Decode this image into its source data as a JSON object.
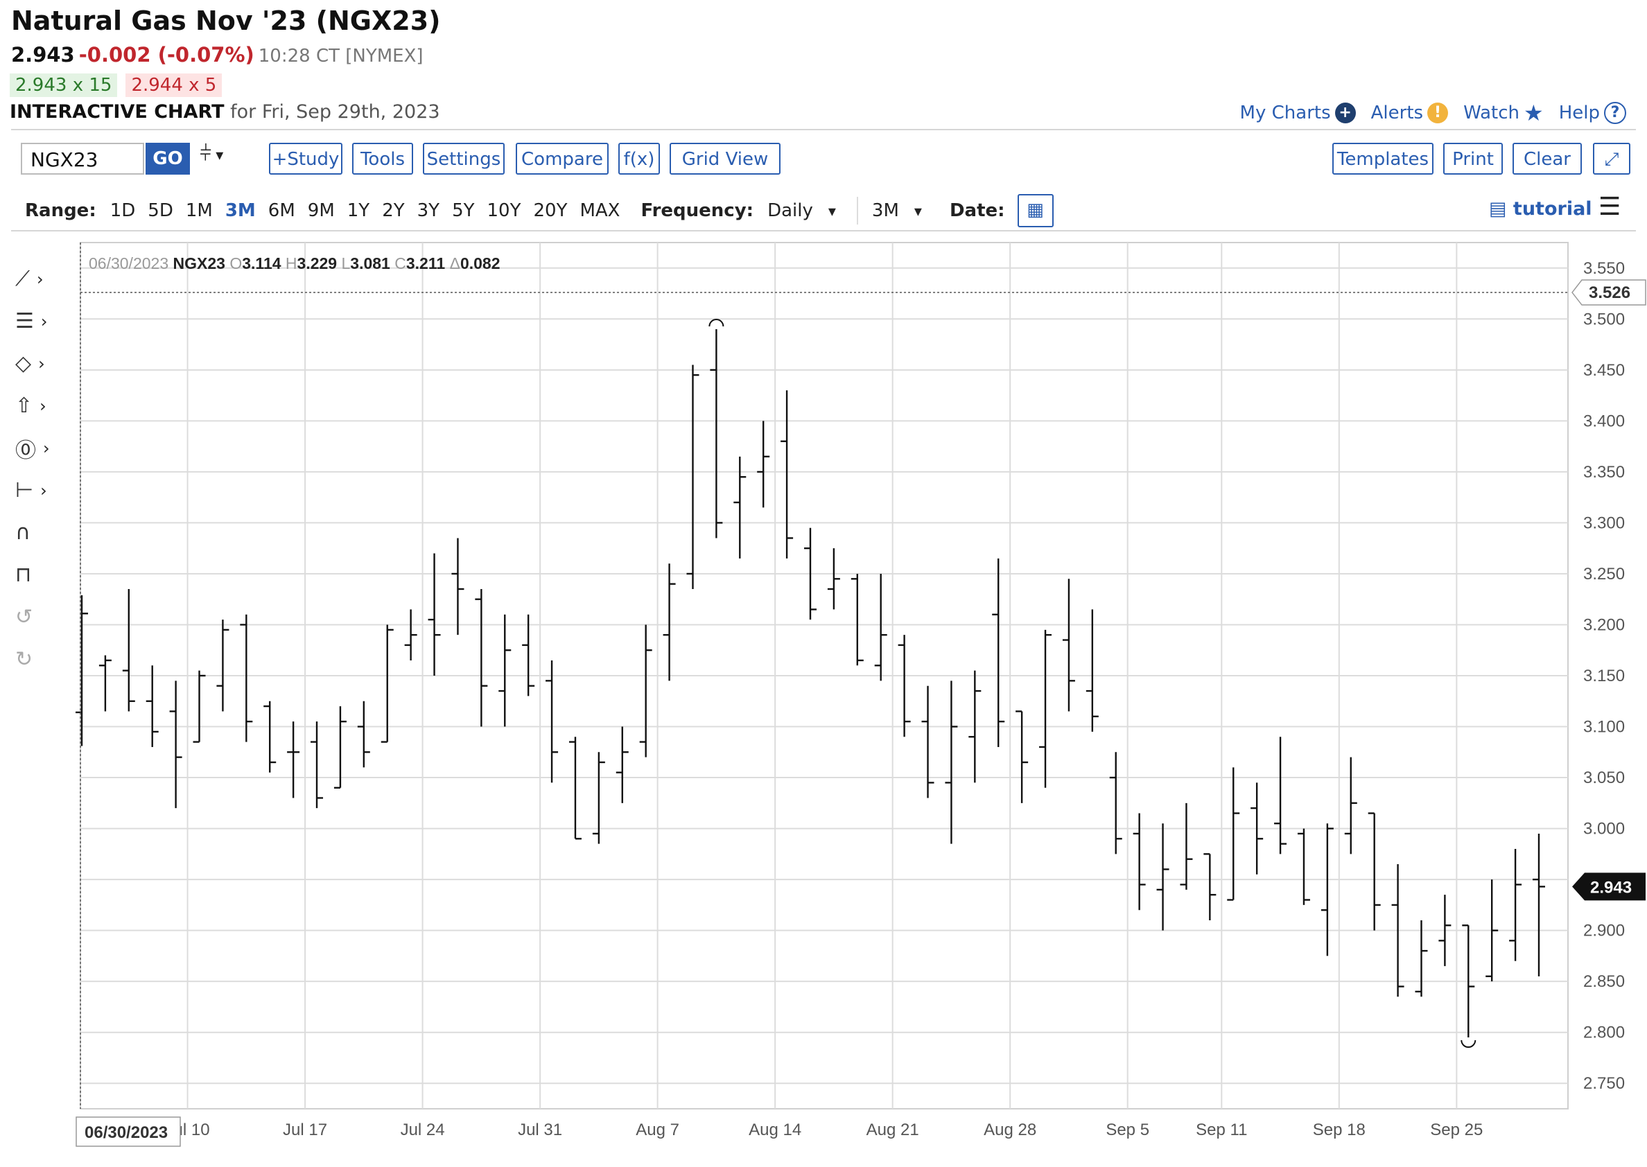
{
  "header": {
    "title": "Natural Gas Nov '23 (NGX23)",
    "last": "2.943",
    "change": "-0.002 (-0.07%)",
    "time": "10:28 CT [NYMEX]",
    "bid": "2.943 x 15",
    "ask": "2.944 x 5",
    "chart_label": "INTERACTIVE CHART",
    "chart_for": "for Fri, Sep 29th, 2023"
  },
  "links": {
    "my_charts": "My Charts",
    "alerts": "Alerts",
    "watch": "Watch",
    "help": "Help"
  },
  "toolbar": {
    "symbol": "NGX23",
    "go": "GO",
    "study": "+Study",
    "tools": "Tools",
    "settings": "Settings",
    "compare": "Compare",
    "fx": "f(x)",
    "grid_view": "Grid View",
    "templates": "Templates",
    "print": "Print",
    "clear": "Clear"
  },
  "range": {
    "label": "Range:",
    "options": [
      "1D",
      "5D",
      "1M",
      "3M",
      "6M",
      "9M",
      "1Y",
      "2Y",
      "3Y",
      "5Y",
      "10Y",
      "20Y",
      "MAX"
    ],
    "selected": "3M",
    "frequency_label": "Frequency:",
    "frequency_value": "Daily",
    "period_value": "3M",
    "date_label": "Date:",
    "tutorial": "tutorial"
  },
  "tools_panel": [
    "line-tool-icon",
    "fib-tool-icon",
    "shape-tool-icon",
    "arrow-tool-icon",
    "text-tool-icon",
    "measure-tool-icon",
    "magnet-icon",
    "lock-icon",
    "undo-icon",
    "redo-icon"
  ],
  "colors": {
    "accent": "#2a5db0",
    "down": "#c0262d",
    "up": "#2a7a2a",
    "bar": "#111111",
    "grid": "#d9d9d9"
  },
  "chart_data": {
    "type": "ohlc",
    "ohlc_header": {
      "date": "06/30/2023",
      "symbol": "NGX23",
      "o": "3.114",
      "h": "3.229",
      "l": "3.081",
      "c": "3.211",
      "delta": "0.082"
    },
    "crosshair_price": "3.526",
    "crosshair_date": "06/30/2023",
    "last_price": "2.943",
    "ylim": [
      2.725,
      3.575
    ],
    "y_ticks": [
      "3.550",
      "3.500",
      "3.450",
      "3.400",
      "3.350",
      "3.300",
      "3.250",
      "3.200",
      "3.150",
      "3.100",
      "3.050",
      "3.000",
      "2.950",
      "2.900",
      "2.850",
      "2.800",
      "2.750"
    ],
    "x_ticks": [
      "Jul 10",
      "Jul 17",
      "Jul 24",
      "Jul 31",
      "Aug 7",
      "Aug 14",
      "Aug 21",
      "Aug 28",
      "Sep 5",
      "Sep 11",
      "Sep 18",
      "Sep 25"
    ],
    "bars": [
      {
        "d": "2023-06-30",
        "o": 3.114,
        "h": 3.229,
        "l": 3.081,
        "c": 3.211
      },
      {
        "d": "2023-07-03",
        "o": 3.16,
        "h": 3.17,
        "l": 3.115,
        "c": 3.165
      },
      {
        "d": "2023-07-05",
        "o": 3.155,
        "h": 3.235,
        "l": 3.115,
        "c": 3.125
      },
      {
        "d": "2023-07-06",
        "o": 3.125,
        "h": 3.16,
        "l": 3.08,
        "c": 3.095
      },
      {
        "d": "2023-07-07",
        "o": 3.115,
        "h": 3.145,
        "l": 3.02,
        "c": 3.07
      },
      {
        "d": "2023-07-10",
        "o": 3.085,
        "h": 3.155,
        "l": 3.085,
        "c": 3.15
      },
      {
        "d": "2023-07-11",
        "o": 3.14,
        "h": 3.205,
        "l": 3.115,
        "c": 3.195
      },
      {
        "d": "2023-07-12",
        "o": 3.2,
        "h": 3.21,
        "l": 3.085,
        "c": 3.105
      },
      {
        "d": "2023-07-13",
        "o": 3.12,
        "h": 3.125,
        "l": 3.055,
        "c": 3.065
      },
      {
        "d": "2023-07-14",
        "o": 3.075,
        "h": 3.105,
        "l": 3.03,
        "c": 3.075
      },
      {
        "d": "2023-07-17",
        "o": 3.085,
        "h": 3.105,
        "l": 3.02,
        "c": 3.03
      },
      {
        "d": "2023-07-18",
        "o": 3.04,
        "h": 3.12,
        "l": 3.04,
        "c": 3.105
      },
      {
        "d": "2023-07-19",
        "o": 3.1,
        "h": 3.125,
        "l": 3.06,
        "c": 3.075
      },
      {
        "d": "2023-07-20",
        "o": 3.085,
        "h": 3.2,
        "l": 3.085,
        "c": 3.195
      },
      {
        "d": "2023-07-21",
        "o": 3.18,
        "h": 3.215,
        "l": 3.165,
        "c": 3.19
      },
      {
        "d": "2023-07-24",
        "o": 3.205,
        "h": 3.27,
        "l": 3.15,
        "c": 3.19
      },
      {
        "d": "2023-07-25",
        "o": 3.25,
        "h": 3.285,
        "l": 3.19,
        "c": 3.235
      },
      {
        "d": "2023-07-26",
        "o": 3.225,
        "h": 3.235,
        "l": 3.1,
        "c": 3.14
      },
      {
        "d": "2023-07-27",
        "o": 3.135,
        "h": 3.21,
        "l": 3.1,
        "c": 3.175
      },
      {
        "d": "2023-07-28",
        "o": 3.18,
        "h": 3.21,
        "l": 3.13,
        "c": 3.14
      },
      {
        "d": "2023-07-31",
        "o": 3.145,
        "h": 3.165,
        "l": 3.045,
        "c": 3.075
      },
      {
        "d": "2023-08-01",
        "o": 3.085,
        "h": 3.09,
        "l": 2.99,
        "c": 2.99
      },
      {
        "d": "2023-08-02",
        "o": 2.995,
        "h": 3.075,
        "l": 2.985,
        "c": 3.065
      },
      {
        "d": "2023-08-03",
        "o": 3.055,
        "h": 3.1,
        "l": 3.025,
        "c": 3.075
      },
      {
        "d": "2023-08-04",
        "o": 3.085,
        "h": 3.2,
        "l": 3.07,
        "c": 3.175
      },
      {
        "d": "2023-08-07",
        "o": 3.19,
        "h": 3.26,
        "l": 3.145,
        "c": 3.24
      },
      {
        "d": "2023-08-08",
        "o": 3.25,
        "h": 3.455,
        "l": 3.235,
        "c": 3.445
      },
      {
        "d": "2023-08-09",
        "o": 3.45,
        "h": 3.49,
        "l": 3.285,
        "c": 3.3
      },
      {
        "d": "2023-08-10",
        "o": 3.32,
        "h": 3.365,
        "l": 3.265,
        "c": 3.345
      },
      {
        "d": "2023-08-11",
        "o": 3.35,
        "h": 3.4,
        "l": 3.315,
        "c": 3.365
      },
      {
        "d": "2023-08-14",
        "o": 3.38,
        "h": 3.43,
        "l": 3.265,
        "c": 3.285
      },
      {
        "d": "2023-08-15",
        "o": 3.275,
        "h": 3.295,
        "l": 3.205,
        "c": 3.215
      },
      {
        "d": "2023-08-16",
        "o": 3.235,
        "h": 3.275,
        "l": 3.215,
        "c": 3.245
      },
      {
        "d": "2023-08-17",
        "o": 3.245,
        "h": 3.25,
        "l": 3.16,
        "c": 3.165
      },
      {
        "d": "2023-08-18",
        "o": 3.16,
        "h": 3.25,
        "l": 3.145,
        "c": 3.19
      },
      {
        "d": "2023-08-21",
        "o": 3.18,
        "h": 3.19,
        "l": 3.09,
        "c": 3.105
      },
      {
        "d": "2023-08-22",
        "o": 3.105,
        "h": 3.14,
        "l": 3.03,
        "c": 3.045
      },
      {
        "d": "2023-08-23",
        "o": 3.045,
        "h": 3.145,
        "l": 2.985,
        "c": 3.1
      },
      {
        "d": "2023-08-24",
        "o": 3.09,
        "h": 3.155,
        "l": 3.045,
        "c": 3.135
      },
      {
        "d": "2023-08-25",
        "o": 3.21,
        "h": 3.265,
        "l": 3.08,
        "c": 3.105
      },
      {
        "d": "2023-08-28",
        "o": 3.115,
        "h": 3.115,
        "l": 3.025,
        "c": 3.065
      },
      {
        "d": "2023-08-29",
        "o": 3.08,
        "h": 3.195,
        "l": 3.04,
        "c": 3.19
      },
      {
        "d": "2023-08-30",
        "o": 3.185,
        "h": 3.245,
        "l": 3.115,
        "c": 3.145
      },
      {
        "d": "2023-08-31",
        "o": 3.135,
        "h": 3.215,
        "l": 3.095,
        "c": 3.11
      },
      {
        "d": "2023-09-01",
        "o": 3.05,
        "h": 3.075,
        "l": 2.975,
        "c": 2.99
      },
      {
        "d": "2023-09-05",
        "o": 2.995,
        "h": 3.015,
        "l": 2.92,
        "c": 2.945
      },
      {
        "d": "2023-09-06",
        "o": 2.94,
        "h": 3.005,
        "l": 2.9,
        "c": 2.96
      },
      {
        "d": "2023-09-07",
        "o": 2.945,
        "h": 3.025,
        "l": 2.94,
        "c": 2.97
      },
      {
        "d": "2023-09-08",
        "o": 2.975,
        "h": 2.975,
        "l": 2.91,
        "c": 2.935
      },
      {
        "d": "2023-09-11",
        "o": 2.93,
        "h": 3.06,
        "l": 2.93,
        "c": 3.015
      },
      {
        "d": "2023-09-12",
        "o": 3.02,
        "h": 3.045,
        "l": 2.955,
        "c": 2.99
      },
      {
        "d": "2023-09-13",
        "o": 3.005,
        "h": 3.09,
        "l": 2.975,
        "c": 2.985
      },
      {
        "d": "2023-09-14",
        "o": 2.995,
        "h": 3.0,
        "l": 2.925,
        "c": 2.93
      },
      {
        "d": "2023-09-15",
        "o": 2.92,
        "h": 3.005,
        "l": 2.875,
        "c": 3.0
      },
      {
        "d": "2023-09-18",
        "o": 2.995,
        "h": 3.07,
        "l": 2.975,
        "c": 3.025
      },
      {
        "d": "2023-09-19",
        "o": 3.015,
        "h": 3.015,
        "l": 2.9,
        "c": 2.925
      },
      {
        "d": "2023-09-20",
        "o": 2.925,
        "h": 2.965,
        "l": 2.835,
        "c": 2.845
      },
      {
        "d": "2023-09-21",
        "o": 2.84,
        "h": 2.91,
        "l": 2.835,
        "c": 2.88
      },
      {
        "d": "2023-09-22",
        "o": 2.89,
        "h": 2.935,
        "l": 2.865,
        "c": 2.905
      },
      {
        "d": "2023-09-25",
        "o": 2.905,
        "h": 2.905,
        "l": 2.795,
        "c": 2.845
      },
      {
        "d": "2023-09-26",
        "o": 2.855,
        "h": 2.95,
        "l": 2.85,
        "c": 2.9
      },
      {
        "d": "2023-09-27",
        "o": 2.89,
        "h": 2.98,
        "l": 2.87,
        "c": 2.945
      },
      {
        "d": "2023-09-28",
        "o": 2.95,
        "h": 2.995,
        "l": 2.855,
        "c": 2.943
      }
    ]
  }
}
